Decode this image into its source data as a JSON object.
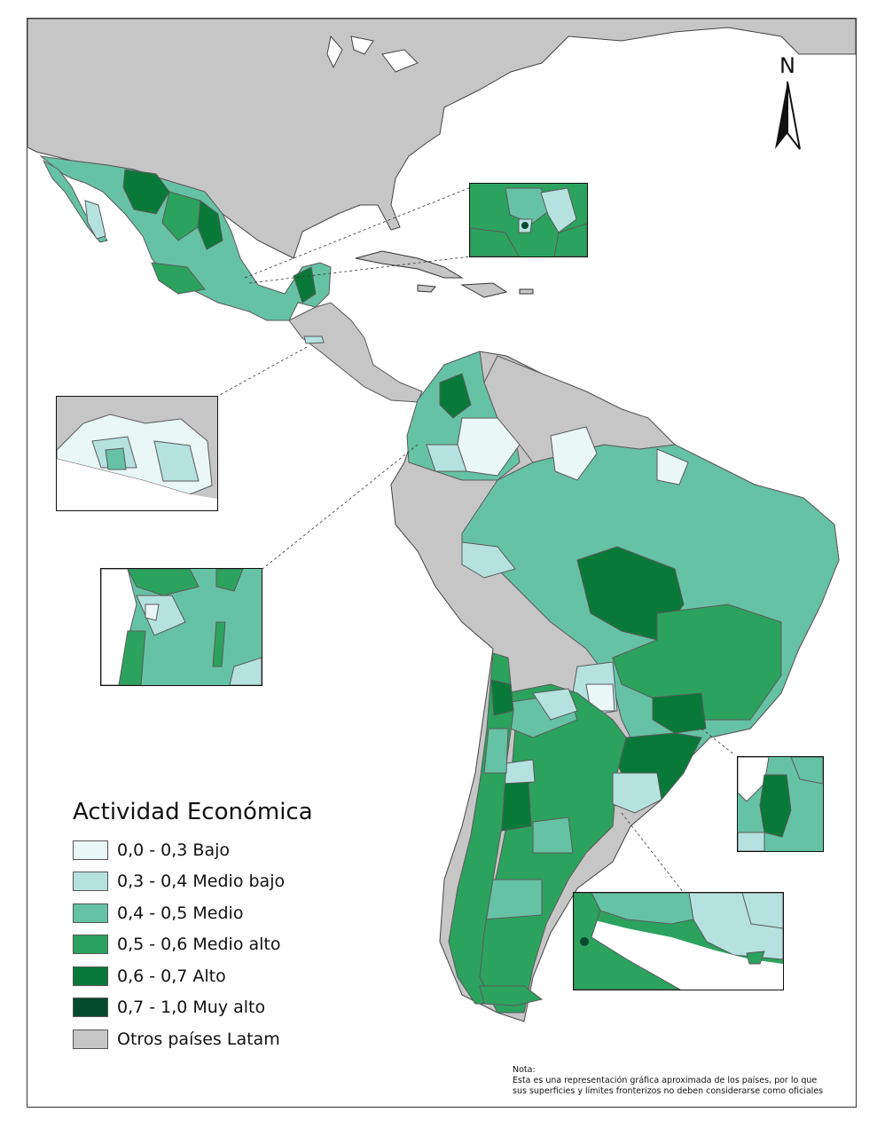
{
  "legend": {
    "title": "Actividad Económica",
    "items": [
      {
        "label": "0,0 - 0,3 Bajo",
        "color": "#eaf7f7"
      },
      {
        "label": "0,3 - 0,4 Medio bajo",
        "color": "#b5e2df"
      },
      {
        "label": "0,4 - 0,5 Medio",
        "color": "#66c2a4"
      },
      {
        "label": "0,5 - 0,6 Medio alto",
        "color": "#2ca25f"
      },
      {
        "label": "0,6 - 0,7 Alto",
        "color": "#09793a"
      },
      {
        "label": "0,7 - 1,0 Muy alto",
        "color": "#044a2c"
      },
      {
        "label": "Otros países Latam",
        "color": "#c6c6c6"
      }
    ]
  },
  "north_arrow": {
    "label": "N",
    "icon": "north-arrow-icon"
  },
  "note": {
    "heading": "Nota:",
    "text": "Esta es una representación gráfica aproximada de los países, por lo que sus superficies y límites fronterizos no deben considerarse como oficiales"
  },
  "colors": {
    "bajo": "#eaf7f7",
    "medio_bajo": "#b5e2df",
    "medio": "#66c2a4",
    "medio_alto": "#2ca25f",
    "alto": "#09793a",
    "muy_alto": "#044a2c",
    "otros": "#c6c6c6",
    "border": "#5a5a5a"
  }
}
